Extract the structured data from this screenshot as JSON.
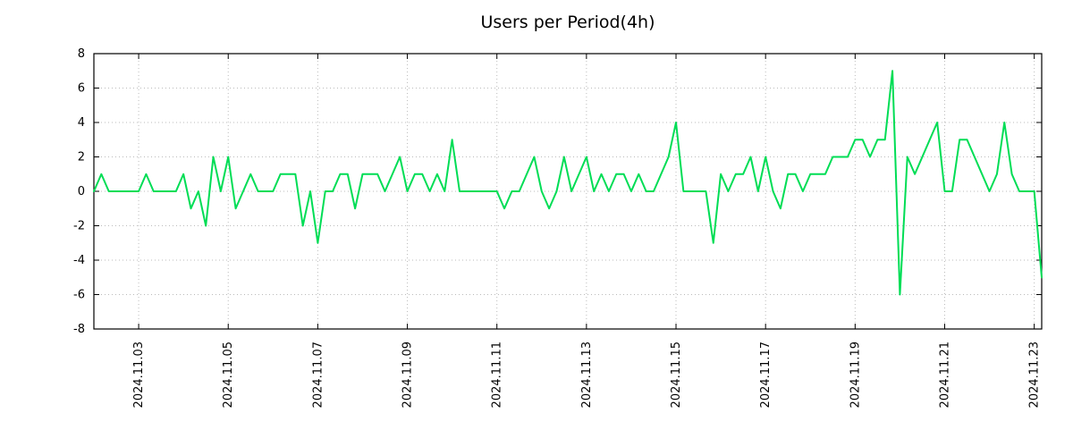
{
  "chart_data": {
    "type": "line",
    "title": "Users per Period(4h)",
    "ylim": [
      -8,
      8
    ],
    "yticks": [
      -8,
      -6,
      -4,
      -2,
      0,
      2,
      4,
      6,
      8
    ],
    "x_tick_labels": [
      "2024.11.03",
      "2024.11.05",
      "2024.11.07",
      "2024.11.09",
      "2024.11.11",
      "2024.11.13",
      "2024.11.15",
      "2024.11.17",
      "2024.11.19",
      "2024.11.21",
      "2024.11.23"
    ],
    "x_tick_indices": [
      6,
      18,
      30,
      42,
      54,
      66,
      78,
      90,
      102,
      114,
      126
    ],
    "period": "4h",
    "series_name": "Users",
    "values": [
      0,
      1,
      0,
      0,
      0,
      0,
      0,
      1,
      0,
      0,
      0,
      0,
      1,
      -1,
      0,
      -2,
      2,
      0,
      2,
      -1,
      0,
      1,
      0,
      0,
      0,
      1,
      1,
      1,
      -2,
      0,
      -3,
      0,
      0,
      1,
      1,
      -1,
      1,
      1,
      1,
      0,
      1,
      2,
      0,
      1,
      1,
      0,
      1,
      0,
      3,
      0,
      0,
      0,
      0,
      0,
      0,
      -1,
      0,
      0,
      1,
      2,
      0,
      -1,
      0,
      2,
      0,
      1,
      2,
      0,
      1,
      0,
      1,
      1,
      0,
      1,
      0,
      0,
      1,
      2,
      4,
      0,
      0,
      0,
      0,
      -3,
      1,
      0,
      1,
      1,
      2,
      0,
      2,
      0,
      -1,
      1,
      1,
      0,
      1,
      1,
      1,
      2,
      2,
      2,
      3,
      3,
      2,
      3,
      3,
      7,
      -6,
      2,
      1,
      2,
      3,
      4,
      0,
      0,
      3,
      3,
      2,
      1,
      0,
      1,
      4,
      1,
      0,
      0,
      0,
      -5
    ],
    "line_color": "#00dd55",
    "grid_color": "#bbbbbb",
    "axis_color": "#000000",
    "background": "#ffffff",
    "grid": "dotted",
    "legend": "none"
  }
}
